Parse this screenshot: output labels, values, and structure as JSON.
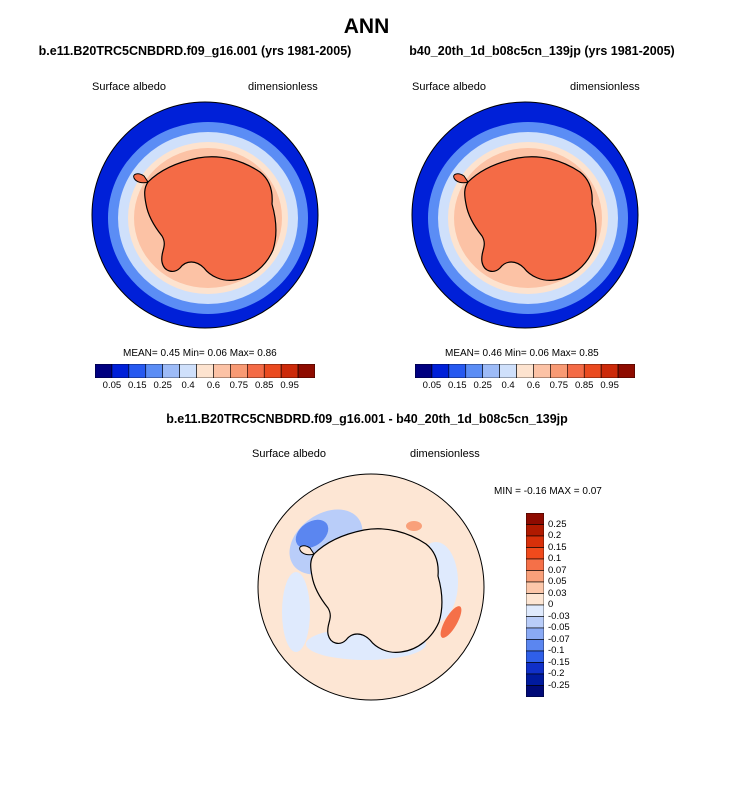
{
  "chart_data": [
    {
      "type": "heatmap",
      "panel": "left-map",
      "title": "ANN",
      "subtitle": "b.e11.B20TRC5CNBDRD.f09_g16.001 (yrs 1981-2005)",
      "variable_label": "Surface albedo",
      "units_label": "dimensionless",
      "stats": {
        "mean_label": "MEAN=",
        "mean": "0.45",
        "min_label": "Min=",
        "min": "0.06",
        "max_label": "Max=",
        "max": "0.86"
      },
      "colorbar_levels": [
        "0.05",
        "0.15",
        "0.25",
        "0.4",
        "0.6",
        "0.75",
        "0.85",
        "0.95"
      ],
      "colors": [
        "#000080",
        "#0020d8",
        "#2659f0",
        "#5b8df5",
        "#9dbbf7",
        "#cfe0fb",
        "#fde3cf",
        "#fcc2a5",
        "#f89a74",
        "#f46b46",
        "#ea4a1f",
        "#cc2a0a",
        "#8e0b00"
      ]
    },
    {
      "type": "heatmap",
      "panel": "right-map",
      "subtitle": "b40_20th_1d_b08c5cn_139jp (yrs 1981-2005)",
      "variable_label": "Surface albedo",
      "units_label": "dimensionless",
      "stats": {
        "mean_label": "MEAN=",
        "mean": "0.46",
        "min_label": "Min=",
        "min": "0.06",
        "max_label": "Max=",
        "max": "0.85"
      },
      "colorbar_levels": [
        "0.05",
        "0.15",
        "0.25",
        "0.4",
        "0.6",
        "0.75",
        "0.85",
        "0.95"
      ],
      "colors": [
        "#000080",
        "#0020d8",
        "#2659f0",
        "#5b8df5",
        "#9dbbf7",
        "#cfe0fb",
        "#fde3cf",
        "#fcc2a5",
        "#f89a74",
        "#f46b46",
        "#ea4a1f",
        "#cc2a0a",
        "#8e0b00"
      ]
    },
    {
      "type": "heatmap",
      "panel": "difference-map",
      "subtitle": "b.e11.B20TRC5CNBDRD.f09_g16.001 - b40_20th_1d_b08c5cn_139jp",
      "variable_label": "Surface albedo",
      "units_label": "dimensionless",
      "stats": {
        "min_label": "MIN =",
        "min": "-0.16",
        "max_label": "MAX =",
        "max": "0.07"
      },
      "colorbar_levels": [
        "0.25",
        "0.2",
        "0.15",
        "0.1",
        "0.07",
        "0.05",
        "0.03",
        "0",
        "-0.03",
        "-0.05",
        "-0.07",
        "-0.1",
        "-0.15",
        "-0.2",
        "-0.25"
      ],
      "colors": [
        "#8e0b00",
        "#b01a00",
        "#d8300a",
        "#f04a1c",
        "#f57048",
        "#f9a07a",
        "#fcc7aa",
        "#fde6d4",
        "#dfeafd",
        "#b9cdf9",
        "#8aaaf5",
        "#5b86f0",
        "#2f5fe8",
        "#1030c8",
        "#001a9e",
        "#000a78"
      ]
    }
  ]
}
